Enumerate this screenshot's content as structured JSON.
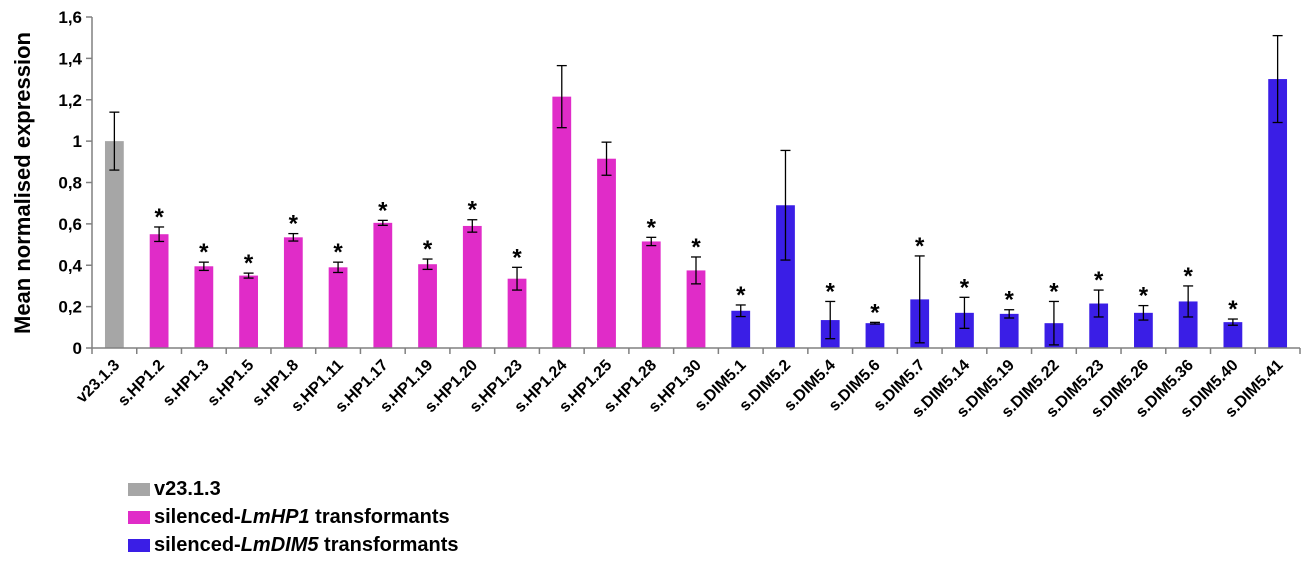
{
  "chart_data": {
    "type": "bar",
    "ylabel": "Mean normalised expression",
    "ylim": [
      0,
      1.6
    ],
    "yticks": [
      "0",
      "0,2",
      "0,4",
      "0,6",
      "0,8",
      "1",
      "1,2",
      "1,4",
      "1,6"
    ],
    "grid": false,
    "legend_position": "bottom-left",
    "categories": [
      "v23.1.3",
      "s.HP1.2",
      "s.HP1.3",
      "s.HP1.5",
      "s.HP1.8",
      "s.HP1.11",
      "s.HP1.17",
      "s.HP1.19",
      "s.HP1.20",
      "s.HP1.23",
      "s.HP1.24",
      "s.HP1.25",
      "s.HP1.28",
      "s.HP1.30",
      "s.DIM5.1",
      "s.DIM5.2",
      "s.DIM5.4",
      "s.DIM5.6",
      "s.DIM5.7",
      "s.DIM5.14",
      "s.DIM5.19",
      "s.DIM5.22",
      "s.DIM5.23",
      "s.DIM5.26",
      "s.DIM5.36",
      "s.DIM5.40",
      "s.DIM5.41"
    ],
    "values": [
      1.0,
      0.55,
      0.395,
      0.35,
      0.535,
      0.39,
      0.605,
      0.405,
      0.59,
      0.335,
      1.215,
      0.915,
      0.515,
      0.375,
      0.18,
      0.69,
      0.135,
      0.12,
      0.235,
      0.17,
      0.165,
      0.12,
      0.215,
      0.17,
      0.225,
      0.125,
      1.3
    ],
    "errors": [
      0.14,
      0.035,
      0.02,
      0.012,
      0.018,
      0.025,
      0.012,
      0.025,
      0.03,
      0.055,
      0.15,
      0.08,
      0.02,
      0.065,
      0.028,
      0.265,
      0.09,
      0.004,
      0.21,
      0.075,
      0.02,
      0.105,
      0.065,
      0.035,
      0.075,
      0.015,
      0.21
    ],
    "groups": [
      "control",
      "hp1",
      "hp1",
      "hp1",
      "hp1",
      "hp1",
      "hp1",
      "hp1",
      "hp1",
      "hp1",
      "hp1",
      "hp1",
      "hp1",
      "hp1",
      "dim5",
      "dim5",
      "dim5",
      "dim5",
      "dim5",
      "dim5",
      "dim5",
      "dim5",
      "dim5",
      "dim5",
      "dim5",
      "dim5",
      "dim5"
    ],
    "significant": [
      false,
      true,
      true,
      true,
      true,
      true,
      true,
      true,
      true,
      true,
      false,
      false,
      true,
      true,
      true,
      false,
      true,
      true,
      true,
      true,
      true,
      true,
      true,
      true,
      true,
      true,
      false
    ],
    "significance_mark": "*",
    "colors": {
      "control": "#a6a6a6",
      "hp1": "#e02cc8",
      "dim5": "#3a1ee6"
    },
    "legend": [
      {
        "group": "control",
        "prefix": "v23.1.3",
        "italic": "",
        "suffix": ""
      },
      {
        "group": "hp1",
        "prefix": "silenced-",
        "italic": "LmHP1",
        "suffix": " transformants"
      },
      {
        "group": "dim5",
        "prefix": "silenced-",
        "italic": "LmDIM5",
        "suffix": " transformants"
      }
    ]
  }
}
